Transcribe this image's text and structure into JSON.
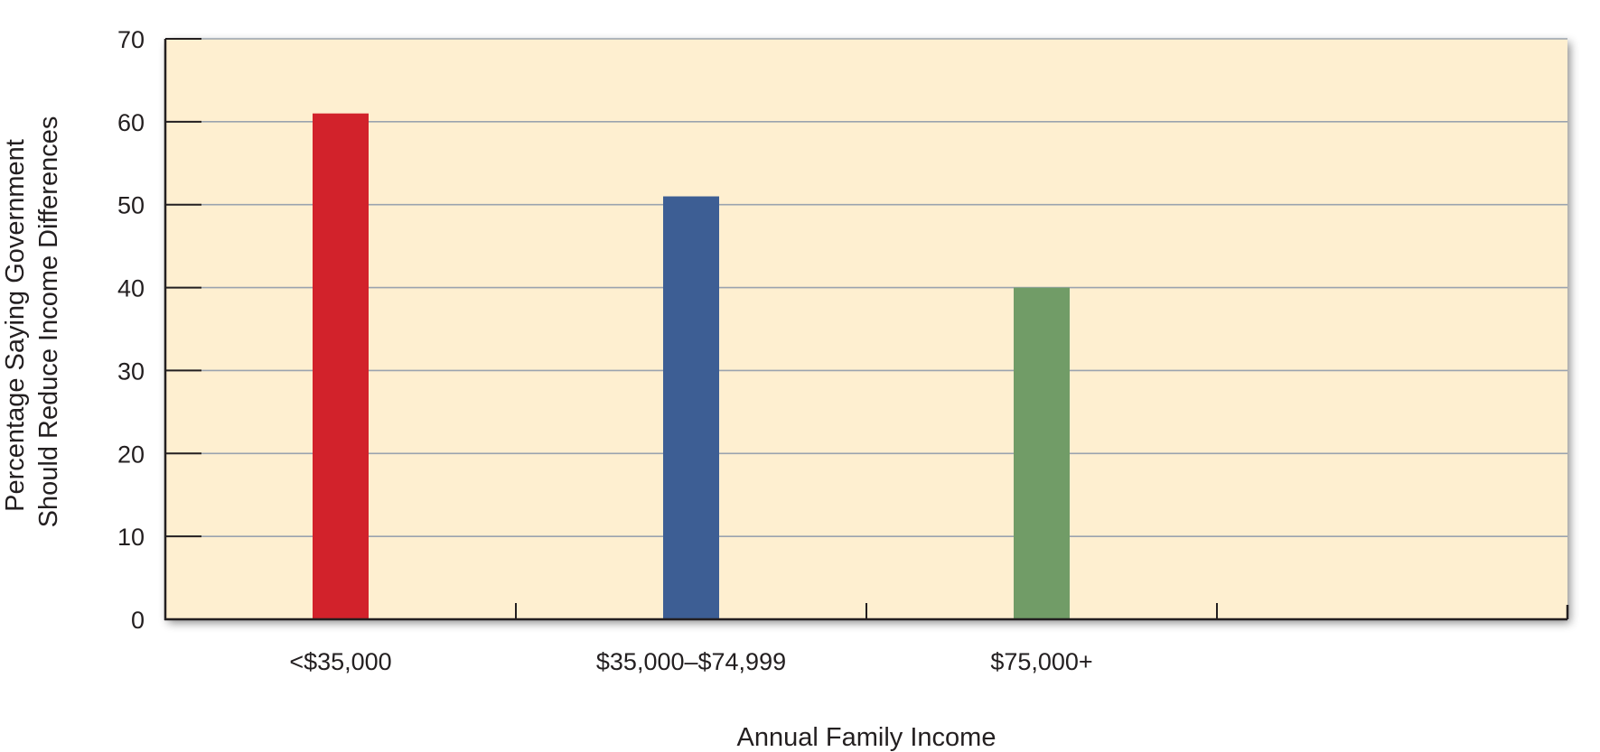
{
  "chart_data": {
    "type": "bar",
    "title": "",
    "xlabel": "Annual Family Income",
    "ylabel_lines": [
      "Percentage Saying Government",
      "Should Reduce Income Differences"
    ],
    "categories": [
      "<$35,000",
      "$35,000–$74,999",
      "$75,000+"
    ],
    "values": [
      61,
      51,
      40
    ],
    "bar_colors": [
      "#d2222b",
      "#3d5e94",
      "#719c67"
    ],
    "ylim": [
      0,
      70
    ],
    "yticks": [
      0,
      10,
      20,
      30,
      40,
      50,
      60,
      70
    ],
    "slots": 4,
    "grid": true,
    "legend": "none",
    "colors": {
      "plot_background": "#feefd0",
      "gridline": "#9aa3ae",
      "axis": "#231f20"
    }
  }
}
